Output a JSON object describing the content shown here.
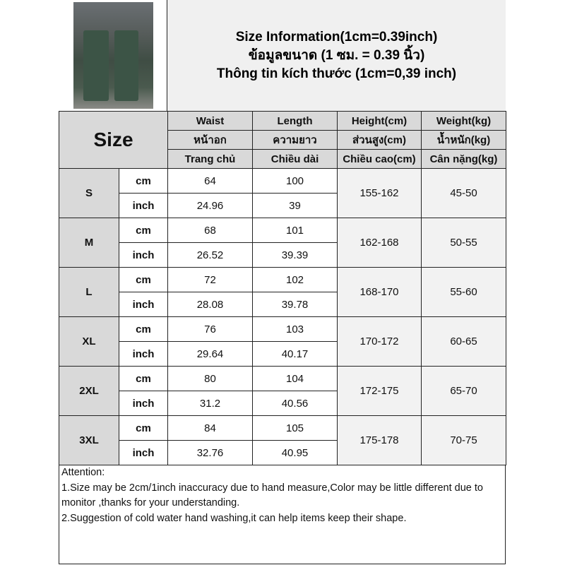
{
  "header": {
    "lines": [
      "Size Information(1cm=0.39inch)",
      "ข้อมูลขนาด (1 ซม. = 0.39 นิ้ว)",
      "Thông tin kích thước (1cm=0,39 inch)"
    ]
  },
  "table": {
    "size_label": "Size",
    "columns": [
      [
        "Waist",
        "หน้าอก",
        "Trang chủ"
      ],
      [
        "Length",
        "ความยาว",
        "Chiều dài"
      ],
      [
        "Height(cm)",
        "ส่วนสูง(cm)",
        "Chiều cao(cm)"
      ],
      [
        "Weight(kg)",
        "น้ำหนัก(kg)",
        "Cân nặng(kg)"
      ]
    ],
    "unit_cm": "cm",
    "unit_inch": "inch",
    "rows": [
      {
        "size": "S",
        "waist_cm": "64",
        "length_cm": "100",
        "waist_in": "24.96",
        "length_in": "39",
        "height": "155-162",
        "weight": "45-50"
      },
      {
        "size": "M",
        "waist_cm": "68",
        "length_cm": "101",
        "waist_in": "26.52",
        "length_in": "39.39",
        "height": "162-168",
        "weight": "50-55"
      },
      {
        "size": "L",
        "waist_cm": "72",
        "length_cm": "102",
        "waist_in": "28.08",
        "length_in": "39.78",
        "height": "168-170",
        "weight": "55-60"
      },
      {
        "size": "XL",
        "waist_cm": "76",
        "length_cm": "103",
        "waist_in": "29.64",
        "length_in": "40.17",
        "height": "170-172",
        "weight": "60-65"
      },
      {
        "size": "2XL",
        "waist_cm": "80",
        "length_cm": "104",
        "waist_in": "31.2",
        "length_in": "40.56",
        "height": "172-175",
        "weight": "65-70"
      },
      {
        "size": "3XL",
        "waist_cm": "84",
        "length_cm": "105",
        "waist_in": "32.76",
        "length_in": "40.95",
        "height": "175-178",
        "weight": "70-75"
      }
    ]
  },
  "attention": {
    "title": "Attention:",
    "lines": [
      "1.Size may be 2cm/1inch inaccuracy due to hand measure,Color may be little different due to monitor ,thanks for your understanding.",
      "2.Suggestion of cold water hand washing,it can help items keep their shape."
    ]
  }
}
